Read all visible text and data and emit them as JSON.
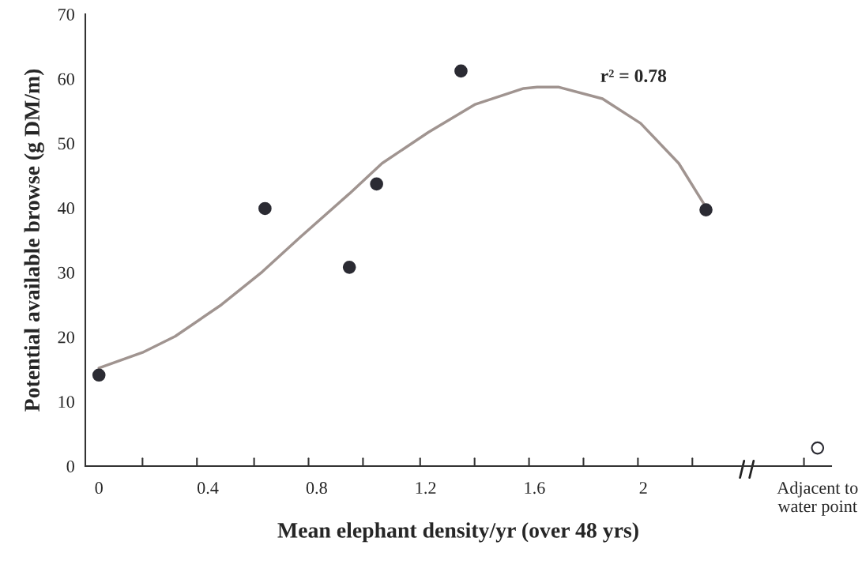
{
  "chart_data": {
    "type": "scatter",
    "xlabel": "Mean elephant density/yr (over 48 yrs)",
    "ylabel": "Potential available browse (g DM/m)",
    "xlim": [
      -0.05,
      2.69
    ],
    "ylim": [
      0,
      70
    ],
    "xticks": [
      0,
      0.4,
      0.8,
      1.2,
      1.6,
      2,
      {
        "value": 2.64,
        "label": "Adjacent to\nwater point"
      }
    ],
    "yticks": [
      0,
      10,
      20,
      30,
      40,
      50,
      60,
      70
    ],
    "grid": false,
    "legend": false,
    "series": [
      {
        "color": "#2b2b33",
        "marker": "circle",
        "x": [
          0,
          0.61,
          0.92,
          1.02,
          1.33,
          2.23
        ],
        "values": [
          14.1,
          39.9,
          30.8,
          43.7,
          61.2,
          39.7
        ]
      },
      {
        "color": "#ffffff",
        "marker": "circle",
        "x": [
          2.64
        ],
        "values": [
          2.8
        ]
      },
      {
        "type": "line",
        "color": "#a09490",
        "marker": "none",
        "line_style": "solid",
        "x": [
          0,
          0.16,
          0.28,
          0.45,
          0.6,
          0.74,
          0.92,
          1.04,
          1.21,
          1.38,
          1.56,
          1.61,
          1.69,
          1.85,
          1.99,
          2.13,
          2.23
        ],
        "values": [
          15.2,
          17.6,
          20.1,
          25,
          30.1,
          35.5,
          42.2,
          46.9,
          51.7,
          56,
          58.5,
          58.7,
          58.7,
          56.9,
          53.1,
          46.9,
          40.1
        ]
      }
    ],
    "annotations": [
      "r² = 0.78"
    ]
  }
}
